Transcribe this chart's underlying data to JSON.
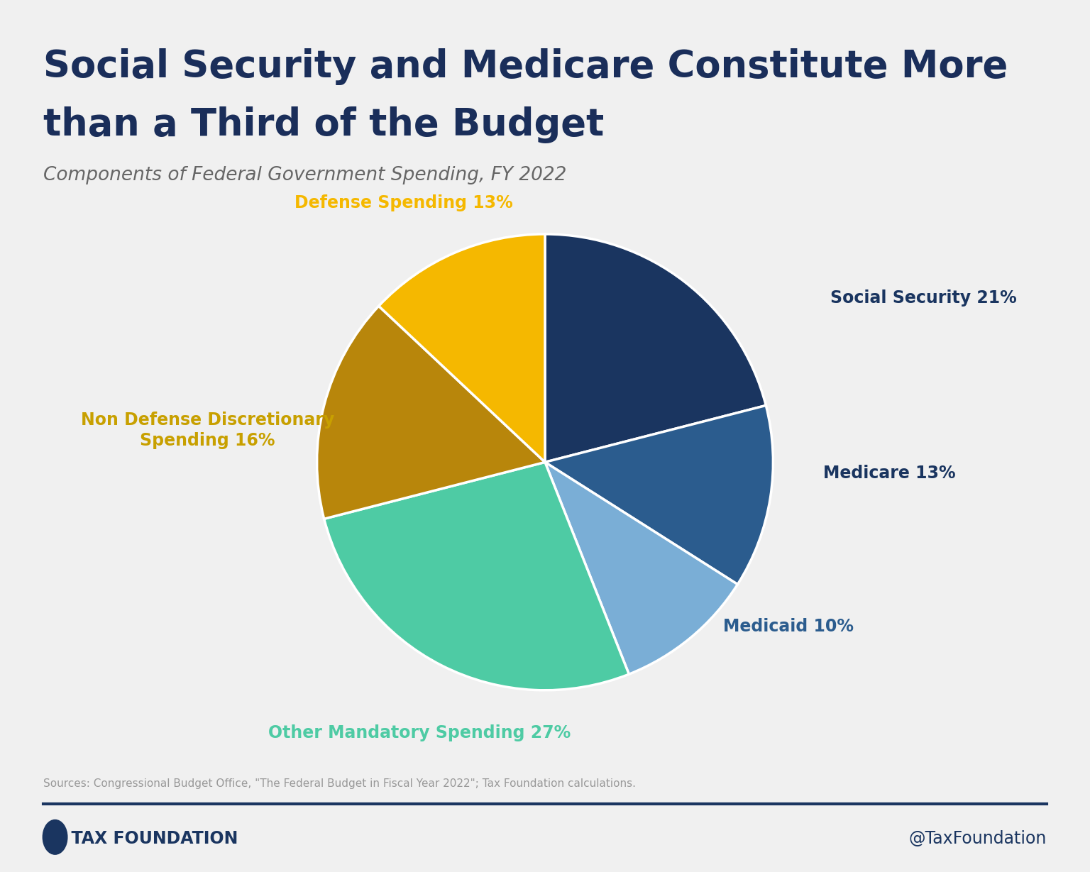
{
  "title_line1": "Social Security and Medicare Constitute More",
  "title_line2": "than a Third of the Budget",
  "subtitle": "Components of Federal Government Spending, FY 2022",
  "source_text": "Sources: Congressional Budget Office, \"The Federal Budget in Fiscal Year 2022\"; Tax Foundation calculations.",
  "footer_left": "  TAX FOUNDATION",
  "footer_right": "@TaxFoundation",
  "background_color": "#f0f0f0",
  "title_color": "#1a2e5a",
  "subtitle_color": "#666666",
  "slices": [
    {
      "label": "Social Security 21%",
      "value": 21,
      "color": "#1a3560",
      "label_color": "#1a3560"
    },
    {
      "label": "Medicare 13%",
      "value": 13,
      "color": "#2b5c8e",
      "label_color": "#1a3560"
    },
    {
      "label": "Medicaid 10%",
      "value": 10,
      "color": "#7aaed6",
      "label_color": "#2b5c8e"
    },
    {
      "label": "Other Mandatory Spending 27%",
      "value": 27,
      "color": "#4ecba4",
      "label_color": "#4ecba4"
    },
    {
      "label": "Non Defense Discretionary\nSpending 16%",
      "value": 16,
      "color": "#b8860b",
      "label_color": "#c8a000"
    },
    {
      "label": "Defense Spending 13%",
      "value": 13,
      "color": "#f5b800",
      "label_color": "#f5b800"
    }
  ],
  "divider_color": "#1a3560",
  "footer_text_color": "#1a3560",
  "start_angle": 90
}
